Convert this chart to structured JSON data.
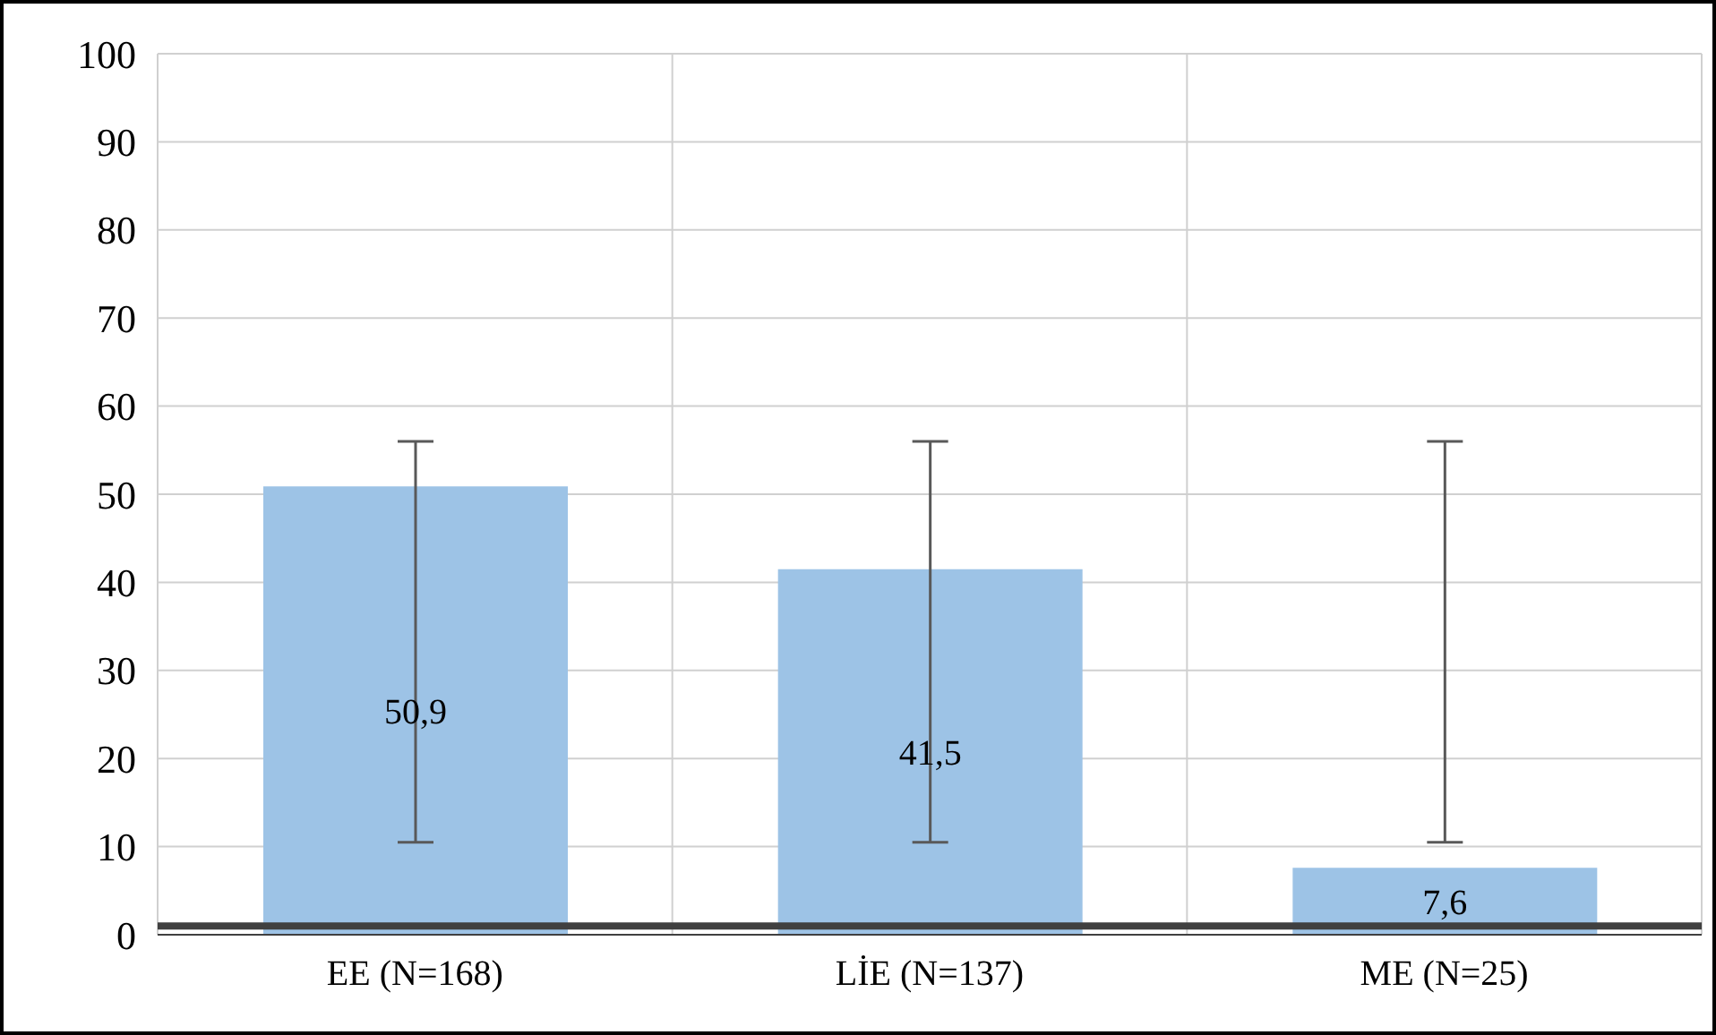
{
  "chart_data": {
    "type": "bar",
    "categories": [
      "EE (N=168)",
      "LİE (N=137)",
      "ME (N=25)"
    ],
    "values": [
      50.9,
      41.5,
      7.6
    ],
    "value_labels": [
      "50,9",
      "41,5",
      "7,6"
    ],
    "errors": [
      [
        10.5,
        56
      ],
      [
        10.5,
        56
      ],
      [
        10.5,
        56
      ]
    ],
    "color": "#9dc3e6",
    "ylim": [
      0,
      100
    ],
    "yticks": [
      0,
      10,
      20,
      30,
      40,
      50,
      60,
      70,
      80,
      90,
      100
    ],
    "grid": true,
    "ref_lines": [
      {
        "axis": "y",
        "value": 1,
        "color": "#404040"
      }
    ]
  }
}
